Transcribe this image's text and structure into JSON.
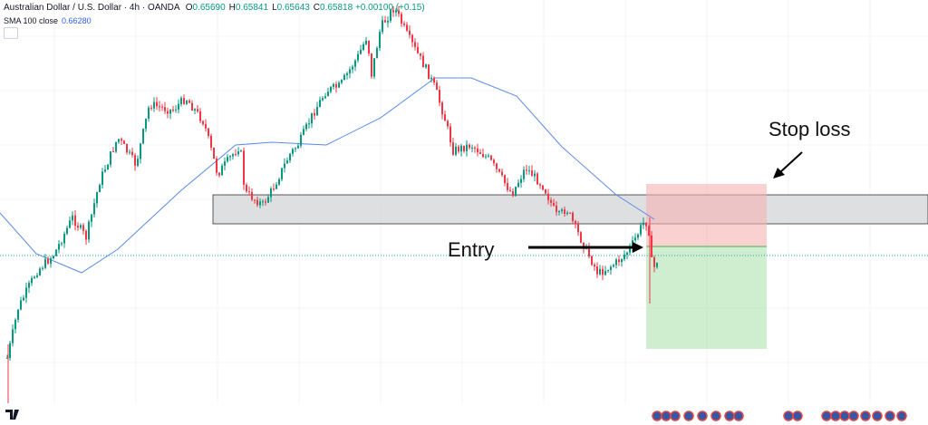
{
  "header": {
    "symbol": "Australian Dollar / U.S. Dollar · 4h · OANDA",
    "ohlc": [
      {
        "label": "O",
        "value": "0.65690"
      },
      {
        "label": "H",
        "value": "0.65841"
      },
      {
        "label": "L",
        "value": "0.65643"
      },
      {
        "label": "C",
        "value": "0.65818"
      }
    ],
    "change": "+0.00100 (+0.15)"
  },
  "indicator": {
    "name": "SMA 100 close",
    "value": "0.66280"
  },
  "annotations": {
    "stop_loss": "Stop loss",
    "entry": "Entry"
  }
}
